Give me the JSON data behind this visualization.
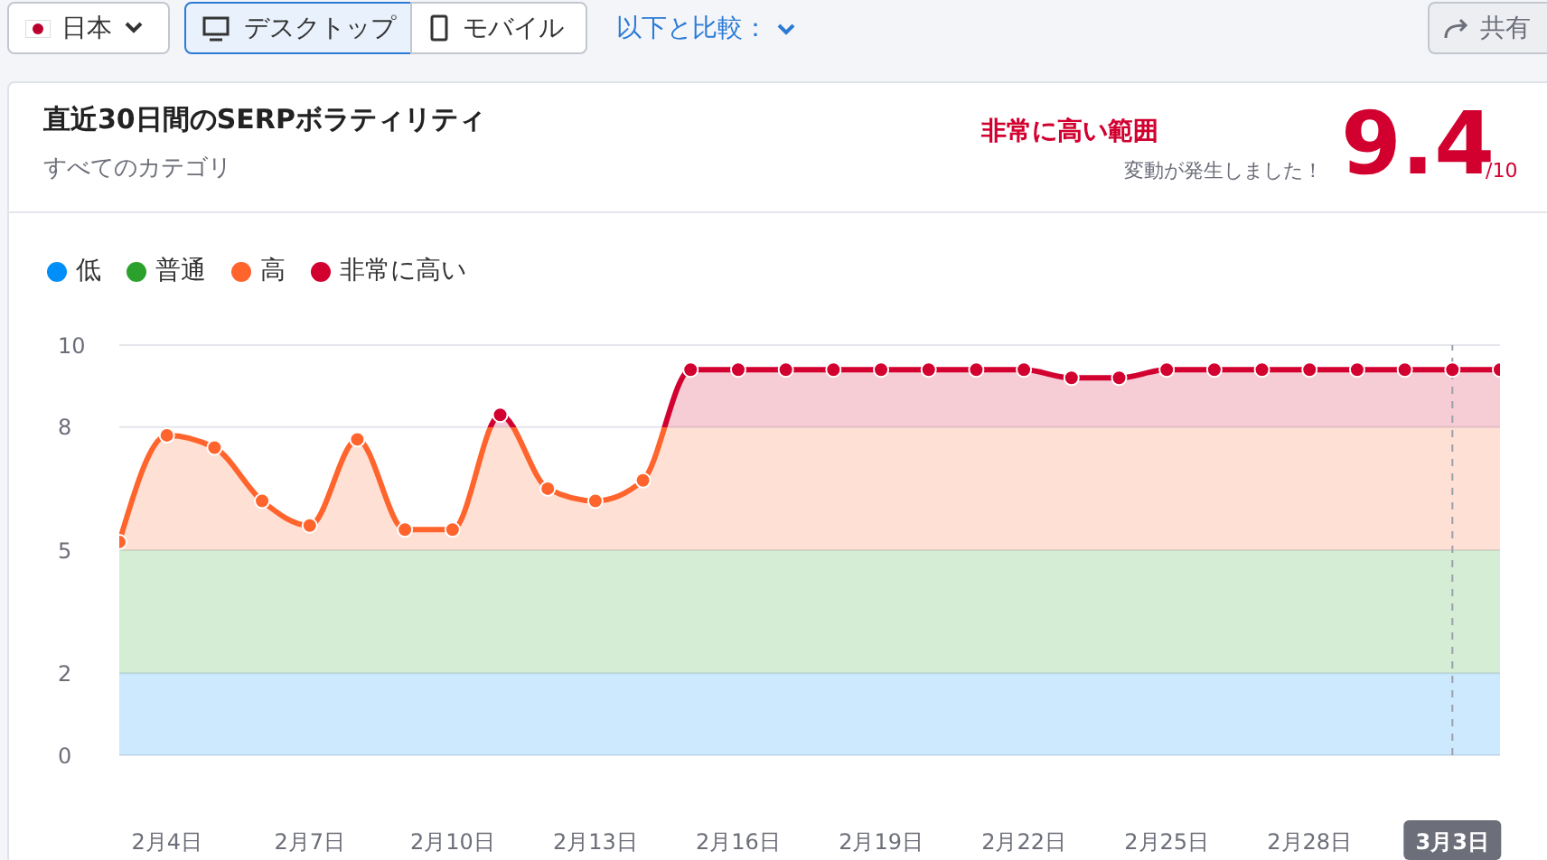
{
  "chart_data": {
    "type": "line",
    "title": "直近30日間のSERPボラティリティ",
    "subtitle": "すべてのカテゴリ",
    "annotations": [
      "日本",
      "デスクトップ",
      "モバイル",
      "以下と比較：",
      "共有",
      "非常に高い範囲",
      "変動が発生しました！",
      "9.4",
      "/10"
    ],
    "categories": [
      null,
      "2月4日",
      null,
      null,
      "2月7日",
      null,
      null,
      "2月10日",
      null,
      null,
      "2月13日",
      null,
      null,
      "2月16日",
      null,
      null,
      "2月19日",
      null,
      null,
      "2月22日",
      null,
      null,
      "2月25日",
      null,
      null,
      "2月28日",
      null,
      null,
      "3月3日",
      null
    ],
    "series": [
      {
        "values": [
          5.2,
          7.8,
          7.5,
          6.2,
          5.6,
          7.7,
          5.5,
          5.5,
          8.3,
          6.5,
          6.2,
          6.7,
          9.4,
          9.4,
          9.4,
          9.4,
          9.4,
          9.4,
          9.4,
          9.4,
          9.2,
          9.2,
          9.4,
          9.4,
          9.4,
          9.4,
          9.4,
          9.4,
          9.4,
          9.4
        ]
      }
    ],
    "bands": [
      {
        "axis": "y",
        "from": 0,
        "to": 2,
        "label": "低",
        "color": "#008ff8"
      },
      {
        "axis": "y",
        "from": 2,
        "to": 5,
        "label": "普通",
        "color": "#2ca02c"
      },
      {
        "axis": "y",
        "from": 5,
        "to": 8,
        "label": "高",
        "color": "#ff642d"
      },
      {
        "axis": "y",
        "from": 8,
        "to": 10,
        "label": "非常に高い",
        "color": "#d1002f"
      }
    ],
    "ref_lines": [
      {
        "axis": "x",
        "value": "3月3日",
        "label": null,
        "line_style": "dashed",
        "color": "#9aa0ab"
      }
    ],
    "ylim": [
      0,
      10
    ],
    "yticks": [
      0,
      2,
      5,
      8,
      10
    ],
    "grid": "y",
    "legend": "top left",
    "marker": "circle",
    "line_style": "solid"
  }
}
